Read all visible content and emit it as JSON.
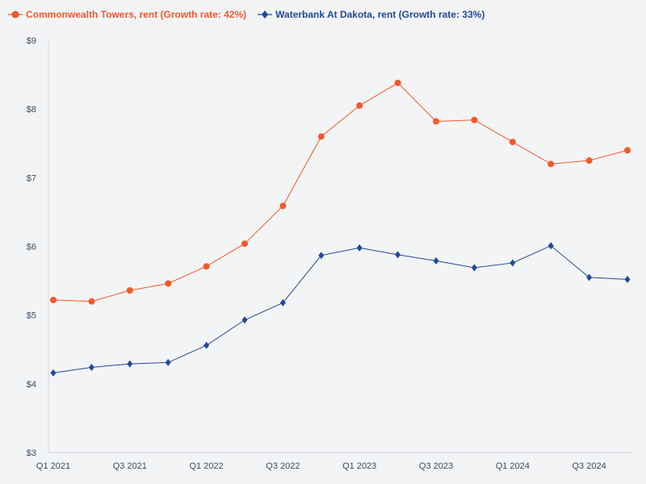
{
  "chart_data": {
    "type": "line",
    "title": "",
    "xlabel": "",
    "ylabel": "",
    "categories": [
      "Q1 2021",
      "Q2 2021",
      "Q3 2021",
      "Q4 2021",
      "Q1 2022",
      "Q2 2022",
      "Q3 2022",
      "Q4 2022",
      "Q1 2023",
      "Q2 2023",
      "Q3 2023",
      "Q4 2023",
      "Q1 2024",
      "Q2 2024",
      "Q3 2024",
      "Q4 2024"
    ],
    "x_tick_labels": [
      "Q1 2021",
      "Q3 2021",
      "Q1 2022",
      "Q3 2022",
      "Q1 2023",
      "Q3 2023",
      "Q1 2024",
      "Q3 2024"
    ],
    "y_tick_labels": [
      "$3",
      "$4",
      "$5",
      "$6",
      "$7",
      "$8",
      "$9"
    ],
    "ylim": [
      3,
      9
    ],
    "legend_position": "top-left",
    "series": [
      {
        "name": "Commonwealth Towers, rent (Growth rate: 42%)",
        "color": "#f4592a",
        "marker": "circle",
        "values": [
          5.22,
          5.2,
          5.36,
          5.46,
          5.71,
          6.04,
          6.59,
          7.6,
          8.05,
          8.38,
          7.82,
          7.84,
          7.52,
          7.2,
          7.25,
          7.4
        ]
      },
      {
        "name": "Waterbank At Dakota, rent (Growth rate: 33%)",
        "color": "#214a96",
        "marker": "diamond",
        "values": [
          4.16,
          4.24,
          4.29,
          4.31,
          4.56,
          4.93,
          5.18,
          5.87,
          5.98,
          5.88,
          5.79,
          5.69,
          5.76,
          6.01,
          5.55,
          5.52
        ]
      }
    ]
  }
}
